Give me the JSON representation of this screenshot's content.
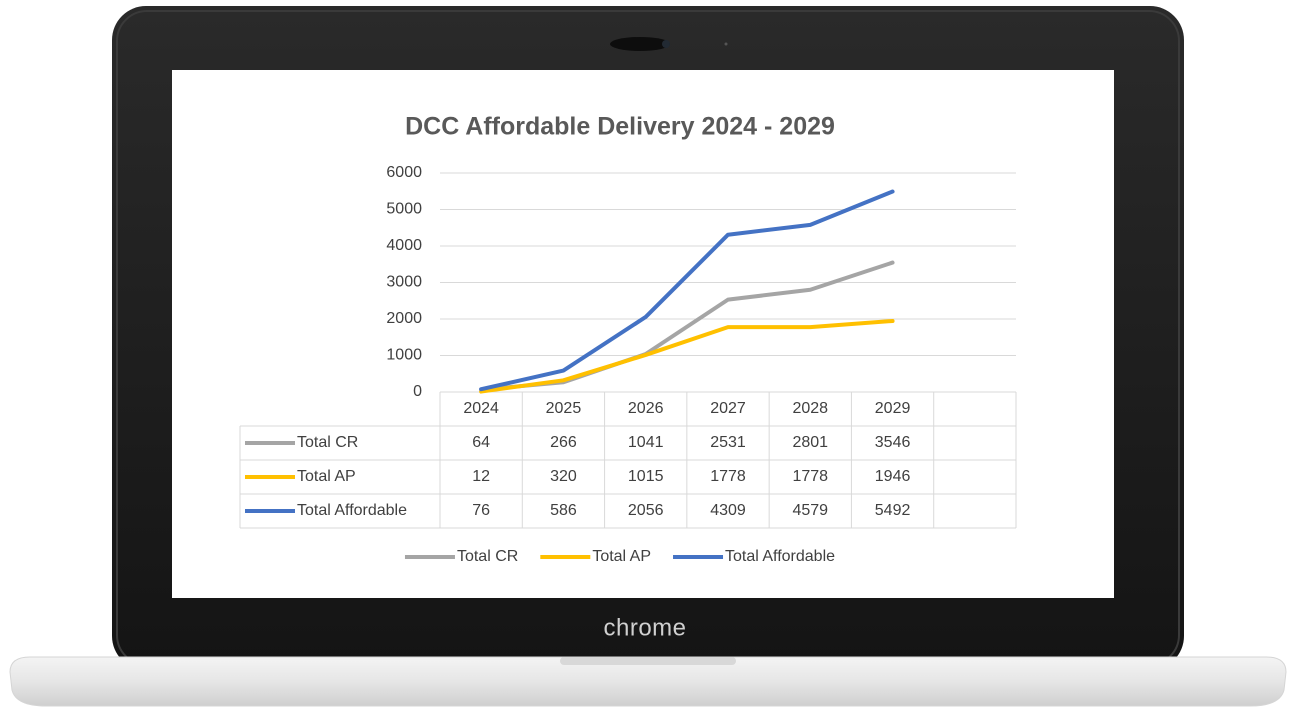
{
  "brand": "chrome",
  "chart_data": {
    "type": "line",
    "title": "DCC Affordable Delivery 2024 - 2029",
    "categories": [
      "2024",
      "2025",
      "2026",
      "2027",
      "2028",
      "2029",
      null
    ],
    "series": [
      {
        "name": "Total CR",
        "color": "#a5a5a5",
        "values": [
          64,
          266,
          1041,
          2531,
          2801,
          3546,
          null
        ]
      },
      {
        "name": "Total AP",
        "color": "#ffc000",
        "values": [
          12,
          320,
          1015,
          1778,
          1778,
          1946,
          null
        ]
      },
      {
        "name": "Total Affordable",
        "color": "#4472c4",
        "values": [
          76,
          586,
          2056,
          4309,
          4579,
          5492,
          null
        ]
      }
    ],
    "ylim": [
      0,
      6000
    ],
    "yticks": [
      0,
      1000,
      2000,
      3000,
      4000,
      5000,
      6000
    ],
    "grid": true,
    "data_table": true,
    "legend": "bottom"
  }
}
